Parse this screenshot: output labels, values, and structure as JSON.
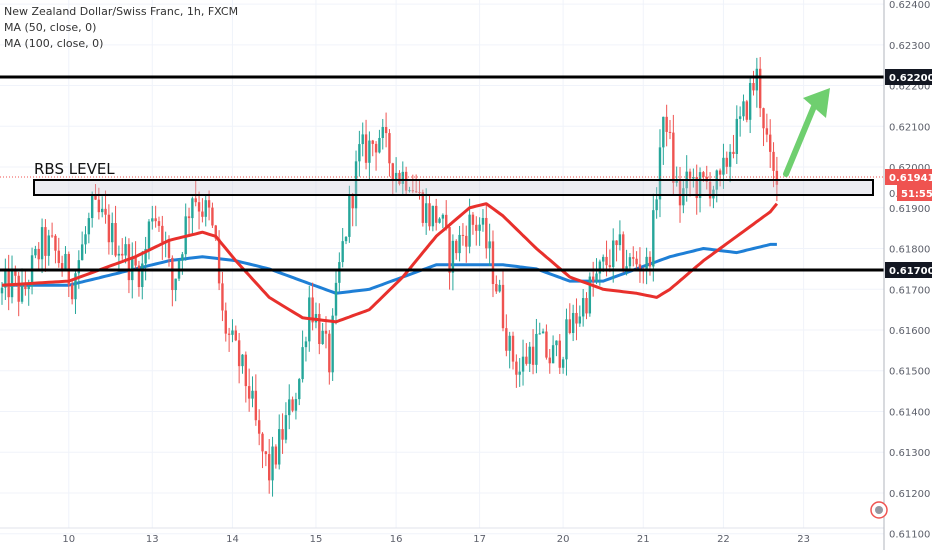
{
  "header": {
    "symbol_title": "New Zealand Dollar/Swiss Franc, 1h, FXCM",
    "ma50_label": "MA (50, close, 0)",
    "ma100_label": "MA (100, close, 0)"
  },
  "annotation": {
    "rbs_label": "RBS LEVEL"
  },
  "price_tags": {
    "level_high": "0.62200",
    "current": "0.61941",
    "countdown": "51:55",
    "level_low": "0.61700",
    "partial": "0."
  },
  "colors": {
    "up": "#26a69a",
    "down": "#ef5350",
    "ma50": "#e8302c",
    "ma100": "#1e7fd6",
    "arrow": "#6fcf6f",
    "level": "#000000",
    "grid": "#f0f3fa"
  },
  "chart_data": {
    "type": "candlestick",
    "title": "New Zealand Dollar/Swiss Franc, 1h, FXCM",
    "ylim": [
      0.6106,
      0.6241
    ],
    "y_ticks": [
      "0.62400",
      "0.62300",
      "0.62200",
      "0.62100",
      "0.62000",
      "0.61900",
      "0.61800",
      "0.61700",
      "0.61600",
      "0.61500",
      "0.61400",
      "0.61300",
      "0.61200",
      "0.61100"
    ],
    "x_ticks": [
      "10",
      "13",
      "14",
      "15",
      "16",
      "17",
      "20",
      "21",
      "22",
      "23"
    ],
    "horizontal_levels": [
      0.622,
      0.617
    ],
    "rbs_zone": [
      0.6189,
      0.6193
    ],
    "last_price": 0.61941,
    "ohlc_anchors": [
      [
        0,
        0.6169
      ],
      [
        3,
        0.6172
      ],
      [
        6,
        0.6168
      ],
      [
        9,
        0.6175
      ],
      [
        12,
        0.6181
      ],
      [
        15,
        0.618
      ],
      [
        18,
        0.6176
      ],
      [
        21,
        0.6172
      ],
      [
        24,
        0.618
      ],
      [
        27,
        0.6189
      ],
      [
        30,
        0.6187
      ],
      [
        33,
        0.6183
      ],
      [
        36,
        0.618
      ],
      [
        39,
        0.6175
      ],
      [
        42,
        0.6175
      ],
      [
        45,
        0.619
      ],
      [
        48,
        0.6185
      ],
      [
        51,
        0.617
      ],
      [
        54,
        0.6182
      ],
      [
        57,
        0.6194
      ],
      [
        60,
        0.619
      ],
      [
        62,
        0.6188
      ],
      [
        64,
        0.618
      ],
      [
        66,
        0.6163
      ],
      [
        68,
        0.6158
      ],
      [
        71,
        0.6152
      ],
      [
        74,
        0.6145
      ],
      [
        77,
        0.6132
      ],
      [
        80,
        0.6125
      ],
      [
        83,
        0.6132
      ],
      [
        86,
        0.614
      ],
      [
        89,
        0.6148
      ],
      [
        92,
        0.6168
      ],
      [
        95,
        0.616
      ],
      [
        98,
        0.6152
      ],
      [
        101,
        0.6175
      ],
      [
        104,
        0.619
      ],
      [
        107,
        0.6203
      ],
      [
        110,
        0.6205
      ],
      [
        113,
        0.6208
      ],
      [
        116,
        0.6202
      ],
      [
        119,
        0.6198
      ],
      [
        122,
        0.6198
      ],
      [
        125,
        0.6192
      ],
      [
        128,
        0.6188
      ],
      [
        131,
        0.6188
      ],
      [
        134,
        0.6178
      ],
      [
        137,
        0.6182
      ],
      [
        140,
        0.6186
      ],
      [
        143,
        0.6186
      ],
      [
        146,
        0.6178
      ],
      [
        149,
        0.6168
      ],
      [
        152,
        0.6155
      ],
      [
        155,
        0.615
      ],
      [
        158,
        0.6155
      ],
      [
        161,
        0.6157
      ],
      [
        164,
        0.6153
      ],
      [
        167,
        0.6155
      ],
      [
        170,
        0.616
      ],
      [
        173,
        0.6165
      ],
      [
        176,
        0.617
      ],
      [
        179,
        0.6174
      ],
      [
        182,
        0.6178
      ],
      [
        185,
        0.6179
      ],
      [
        188,
        0.6176
      ],
      [
        191,
        0.6177
      ],
      [
        193,
        0.6175
      ],
      [
        195,
        0.6185
      ],
      [
        197,
        0.6205
      ],
      [
        199,
        0.6212
      ],
      [
        201,
        0.6198
      ],
      [
        203,
        0.6192
      ],
      [
        206,
        0.6197
      ],
      [
        209,
        0.6195
      ],
      [
        212,
        0.6196
      ],
      [
        215,
        0.6195
      ],
      [
        218,
        0.6205
      ],
      [
        221,
        0.621
      ],
      [
        224,
        0.6218
      ],
      [
        226,
        0.6222
      ],
      [
        228,
        0.6212
      ],
      [
        230,
        0.62
      ],
      [
        232,
        0.6194
      ]
    ],
    "series": [
      {
        "name": "MA (50, close, 0)",
        "values": [
          [
            0,
            0.6171
          ],
          [
            20,
            0.6172
          ],
          [
            40,
            0.6178
          ],
          [
            50,
            0.6182
          ],
          [
            60,
            0.6184
          ],
          [
            64,
            0.6183
          ],
          [
            70,
            0.6177
          ],
          [
            80,
            0.6168
          ],
          [
            90,
            0.6163
          ],
          [
            100,
            0.6162
          ],
          [
            110,
            0.6165
          ],
          [
            120,
            0.6173
          ],
          [
            130,
            0.6183
          ],
          [
            140,
            0.619
          ],
          [
            145,
            0.6191
          ],
          [
            150,
            0.6188
          ],
          [
            160,
            0.618
          ],
          [
            170,
            0.6173
          ],
          [
            180,
            0.617
          ],
          [
            190,
            0.6169
          ],
          [
            196,
            0.6168
          ],
          [
            200,
            0.617
          ],
          [
            210,
            0.6177
          ],
          [
            220,
            0.6183
          ],
          [
            230,
            0.6189
          ],
          [
            232,
            0.6191
          ]
        ]
      },
      {
        "name": "MA (100, close, 0)",
        "values": [
          [
            0,
            0.6171
          ],
          [
            20,
            0.6171
          ],
          [
            40,
            0.6175
          ],
          [
            50,
            0.6177
          ],
          [
            60,
            0.6178
          ],
          [
            70,
            0.6177
          ],
          [
            80,
            0.6175
          ],
          [
            90,
            0.6172
          ],
          [
            100,
            0.6169
          ],
          [
            110,
            0.617
          ],
          [
            120,
            0.6173
          ],
          [
            130,
            0.6176
          ],
          [
            140,
            0.6176
          ],
          [
            150,
            0.6176
          ],
          [
            160,
            0.6175
          ],
          [
            170,
            0.6172
          ],
          [
            180,
            0.6172
          ],
          [
            190,
            0.6175
          ],
          [
            200,
            0.6178
          ],
          [
            210,
            0.618
          ],
          [
            220,
            0.6179
          ],
          [
            230,
            0.6181
          ],
          [
            232,
            0.6181
          ]
        ]
      }
    ]
  }
}
